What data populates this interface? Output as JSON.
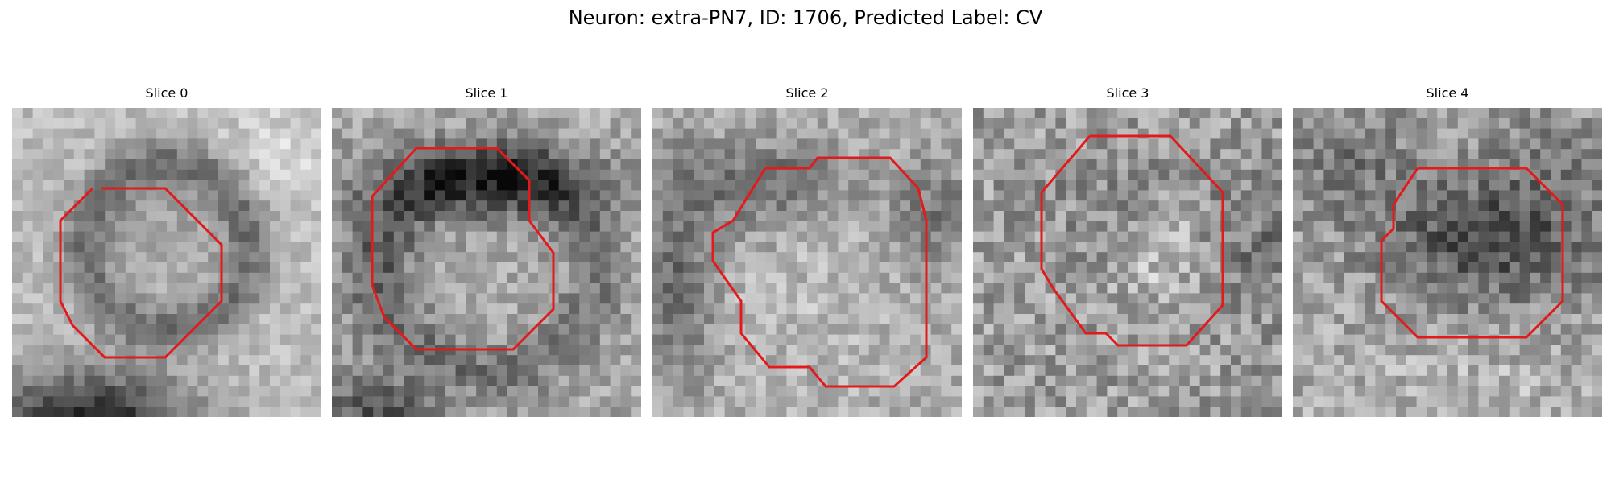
{
  "figure": {
    "title": "Neuron: extra-PN7, ID: 1706, Predicted Label: CV",
    "contour_color": "#e31a1c",
    "panels": [
      {
        "title": "Slice 0",
        "image": "grayscale-intensity-patch",
        "pattern": "bright-left-soma-dark-ring-dark-bottom-left"
      },
      {
        "title": "Slice 1",
        "image": "grayscale-intensity-patch",
        "pattern": "dark-top-ring-medium-center"
      },
      {
        "title": "Slice 2",
        "image": "grayscale-intensity-patch",
        "pattern": "medium-center-dark-top-left"
      },
      {
        "title": "Slice 3",
        "image": "grayscale-intensity-patch",
        "pattern": "noisy-medium-bright-center"
      },
      {
        "title": "Slice 4",
        "image": "grayscale-intensity-patch",
        "pattern": "dark-center-blob"
      }
    ]
  }
}
